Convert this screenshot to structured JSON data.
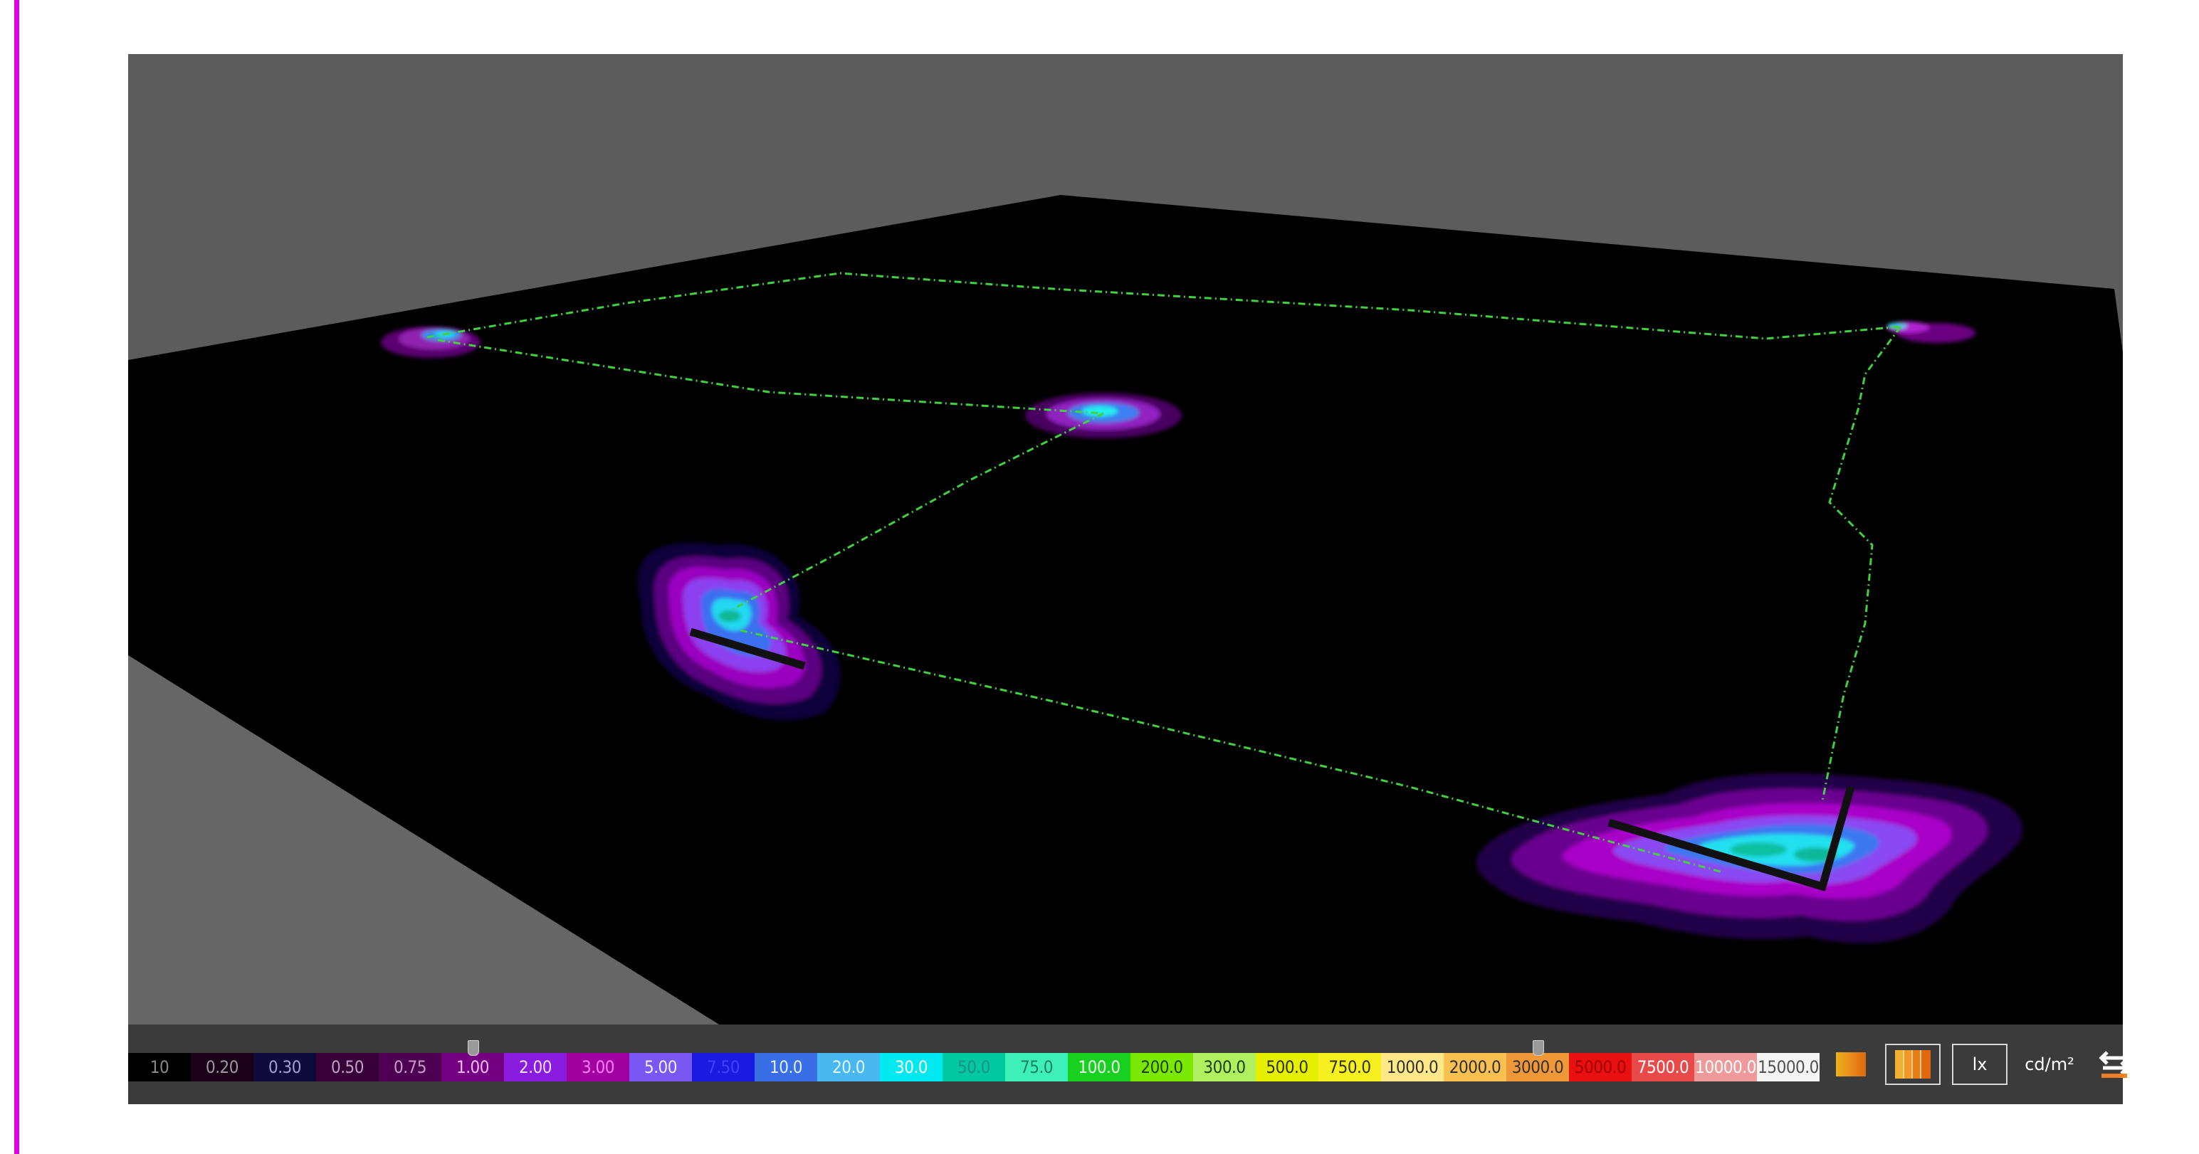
{
  "toolbar": {
    "unit_lx": "lx",
    "unit_cd": "cd/m²",
    "swatch_single_icon": "orange-swatch-icon",
    "swatch_gradient_icon": "orange-gradient-swatch-icon",
    "swap_icon": "swap-arrows-icon"
  },
  "scale": [
    {
      "label": "10",
      "bg": "#000000",
      "fg": "#8a8a8a"
    },
    {
      "label": "0.20",
      "bg": "#1a0018",
      "fg": "#9a9a9a"
    },
    {
      "label": "0.30",
      "bg": "#0e0a3c",
      "fg": "#a0a0d0"
    },
    {
      "label": "0.50",
      "bg": "#360038",
      "fg": "#c0a0c0"
    },
    {
      "label": "0.75",
      "bg": "#4e0052",
      "fg": "#c0a0c0"
    },
    {
      "label": "1.00",
      "bg": "#760082",
      "fg": "#f0c0ff"
    },
    {
      "label": "2.00",
      "bg": "#8a1ce0",
      "fg": "#f0e0ff"
    },
    {
      "label": "3.00",
      "bg": "#a000a0",
      "fg": "#ff80ff"
    },
    {
      "label": "5.00",
      "bg": "#7a56f2",
      "fg": "#f0f0ff"
    },
    {
      "label": "7.50",
      "bg": "#1a1ae0",
      "fg": "#4040ff"
    },
    {
      "label": "10.0",
      "bg": "#3a6ee6",
      "fg": "#e0f0ff"
    },
    {
      "label": "20.0",
      "bg": "#4ab8f0",
      "fg": "#e0f8ff"
    },
    {
      "label": "30.0",
      "bg": "#00e8f0",
      "fg": "#ffffff"
    },
    {
      "label": "50.0",
      "bg": "#00c8a0",
      "fg": "#209080"
    },
    {
      "label": "75.0",
      "bg": "#3cf0b8",
      "fg": "#208060"
    },
    {
      "label": "100.0",
      "bg": "#18d020",
      "fg": "#f0fff0"
    },
    {
      "label": "200.0",
      "bg": "#7ae800",
      "fg": "#204000"
    },
    {
      "label": "300.0",
      "bg": "#b0f060",
      "fg": "#204000"
    },
    {
      "label": "500.0",
      "bg": "#e4f000",
      "fg": "#303000"
    },
    {
      "label": "750.0",
      "bg": "#f6f020",
      "fg": "#303000"
    },
    {
      "label": "1000.0",
      "bg": "#ffe888",
      "fg": "#303030"
    },
    {
      "label": "2000.0",
      "bg": "#f8c050",
      "fg": "#303030"
    },
    {
      "label": "3000.0",
      "bg": "#f09838",
      "fg": "#303030"
    },
    {
      "label": "5000.0",
      "bg": "#e81010",
      "fg": "#a00000"
    },
    {
      "label": "7500.0",
      "bg": "#e84a4a",
      "fg": "#ffffff"
    },
    {
      "label": "10000.0",
      "bg": "#ee9a9a",
      "fg": "#ffffff"
    },
    {
      "label": "15000.0",
      "bg": "#f4f4f4",
      "fg": "#505050"
    }
  ],
  "scale_handles": {
    "lower_index": 5,
    "upper_index": 22
  }
}
